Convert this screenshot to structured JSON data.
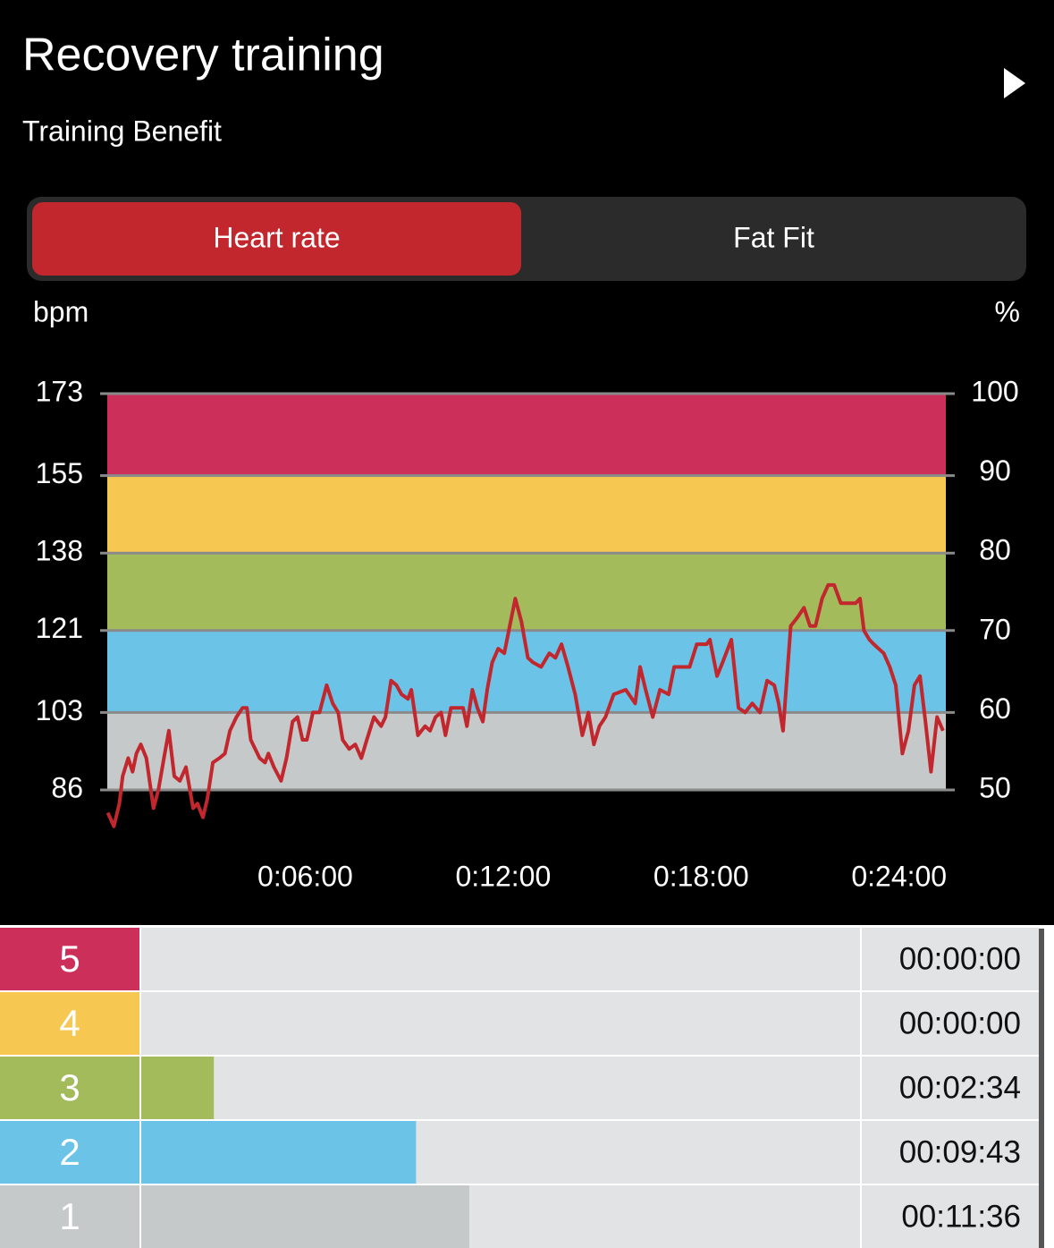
{
  "header": {
    "title": "Recovery training",
    "subtitle": "Training Benefit"
  },
  "tabs": [
    {
      "label": "Heart rate",
      "active": true
    },
    {
      "label": "Fat Fit",
      "active": false
    }
  ],
  "chart_data": [
    {
      "type": "line",
      "y_label": "bpm",
      "y2_label": "%",
      "x": [
        1,
        12,
        22,
        28,
        38,
        46,
        53,
        61,
        71,
        84,
        93,
        103,
        112,
        122,
        132,
        143,
        156,
        164,
        174,
        182,
        192,
        204,
        214,
        223,
        235,
        246,
        254,
        261,
        277,
        287,
        293,
        303,
        316,
        326,
        337,
        346,
        355,
        363,
        374,
        386,
        399,
        410,
        420,
        428,
        440,
        451,
        462,
        472,
        485,
        498,
        506,
        516,
        526,
        535,
        547,
        553,
        565,
        578,
        587,
        597,
        607,
        615,
        625,
        635,
        647,
        654,
        664,
        673,
        683,
        691,
        700,
        711,
        722,
        732,
        742,
        753,
        765,
        774,
        789,
        804,
        815,
        826,
        838,
        851,
        864,
        875,
        885,
        895,
        906,
        921,
        943,
        960,
        969,
        979,
        992,
        1005,
        1021,
        1031,
        1044,
        1059,
        1072,
        1090,
        1096,
        1109,
        1119,
        1135,
        1148,
        1160,
        1173,
        1187,
        1200,
        1213,
        1221,
        1229,
        1243,
        1256,
        1267,
        1278,
        1288,
        1300,
        1311,
        1322,
        1334,
        1345,
        1353,
        1361,
        1369,
        1376,
        1386,
        1394,
        1412,
        1423,
        1434,
        1446,
        1457,
        1468,
        1478,
        1488,
        1498,
        1509,
        1520
      ],
      "series": [
        {
          "color": "#c1272d",
          "values": [
            81,
            78,
            83,
            89,
            93,
            90,
            94,
            96,
            93,
            82,
            86,
            93,
            99,
            89,
            88,
            91,
            82,
            83,
            80,
            84,
            92,
            93,
            94,
            99,
            102,
            104,
            104,
            97,
            93,
            92,
            94,
            91,
            88,
            93,
            101,
            102,
            97,
            97,
            103,
            103,
            109,
            105,
            103,
            97,
            95,
            96,
            93,
            97,
            102,
            100,
            102,
            110,
            109,
            107,
            106,
            108,
            98,
            100,
            99,
            102,
            103,
            98,
            104,
            104,
            104,
            100,
            108,
            104,
            101,
            108,
            114,
            117,
            116,
            122,
            128,
            123,
            115,
            114,
            113,
            116,
            115,
            118,
            113,
            107,
            98,
            103,
            96,
            100,
            102,
            107,
            108,
            105,
            113,
            108,
            102,
            108,
            107,
            113,
            113,
            113,
            118,
            118,
            119,
            111,
            114,
            119,
            104,
            103,
            105,
            103,
            110,
            109,
            105,
            99,
            122,
            124,
            126,
            122,
            122,
            128,
            131,
            131,
            127,
            127,
            127,
            127,
            128,
            121,
            119,
            118,
            116,
            113,
            109,
            94,
            99,
            109,
            111,
            101,
            90,
            102,
            99
          ]
        }
      ],
      "xlim": [
        0,
        1525
      ],
      "xticks": [
        {
          "value": 360,
          "label": "0:06:00"
        },
        {
          "value": 720,
          "label": "0:12:00"
        },
        {
          "value": 1080,
          "label": "0:18:00"
        },
        {
          "value": 1440,
          "label": "0:24:00"
        }
      ],
      "ylim": [
        86,
        173
      ],
      "yticks": [
        86,
        103,
        121,
        138,
        155,
        173
      ],
      "y2lim": [
        50,
        100
      ],
      "y2ticks": [
        50,
        60,
        70,
        80,
        90,
        100
      ],
      "zone_colors": [
        "#c5c9c9",
        "#6bc3e8",
        "#a4bb5c",
        "#f6c851",
        "#cc2f5a"
      ],
      "grid": true
    },
    {
      "type": "bar",
      "orientation": "horizontal",
      "categories": [
        "5",
        "4",
        "3",
        "2",
        "1"
      ],
      "values": [
        0,
        0,
        154,
        583,
        696
      ],
      "value_labels": [
        "00:00:00",
        "00:00:00",
        "00:02:34",
        "00:09:43",
        "00:11:36"
      ],
      "colors": [
        "#cc2f5a",
        "#f6c851",
        "#a4bb5c",
        "#6bc3e8",
        "#c5c9c9"
      ],
      "xlim": [
        0,
        1525
      ]
    }
  ]
}
